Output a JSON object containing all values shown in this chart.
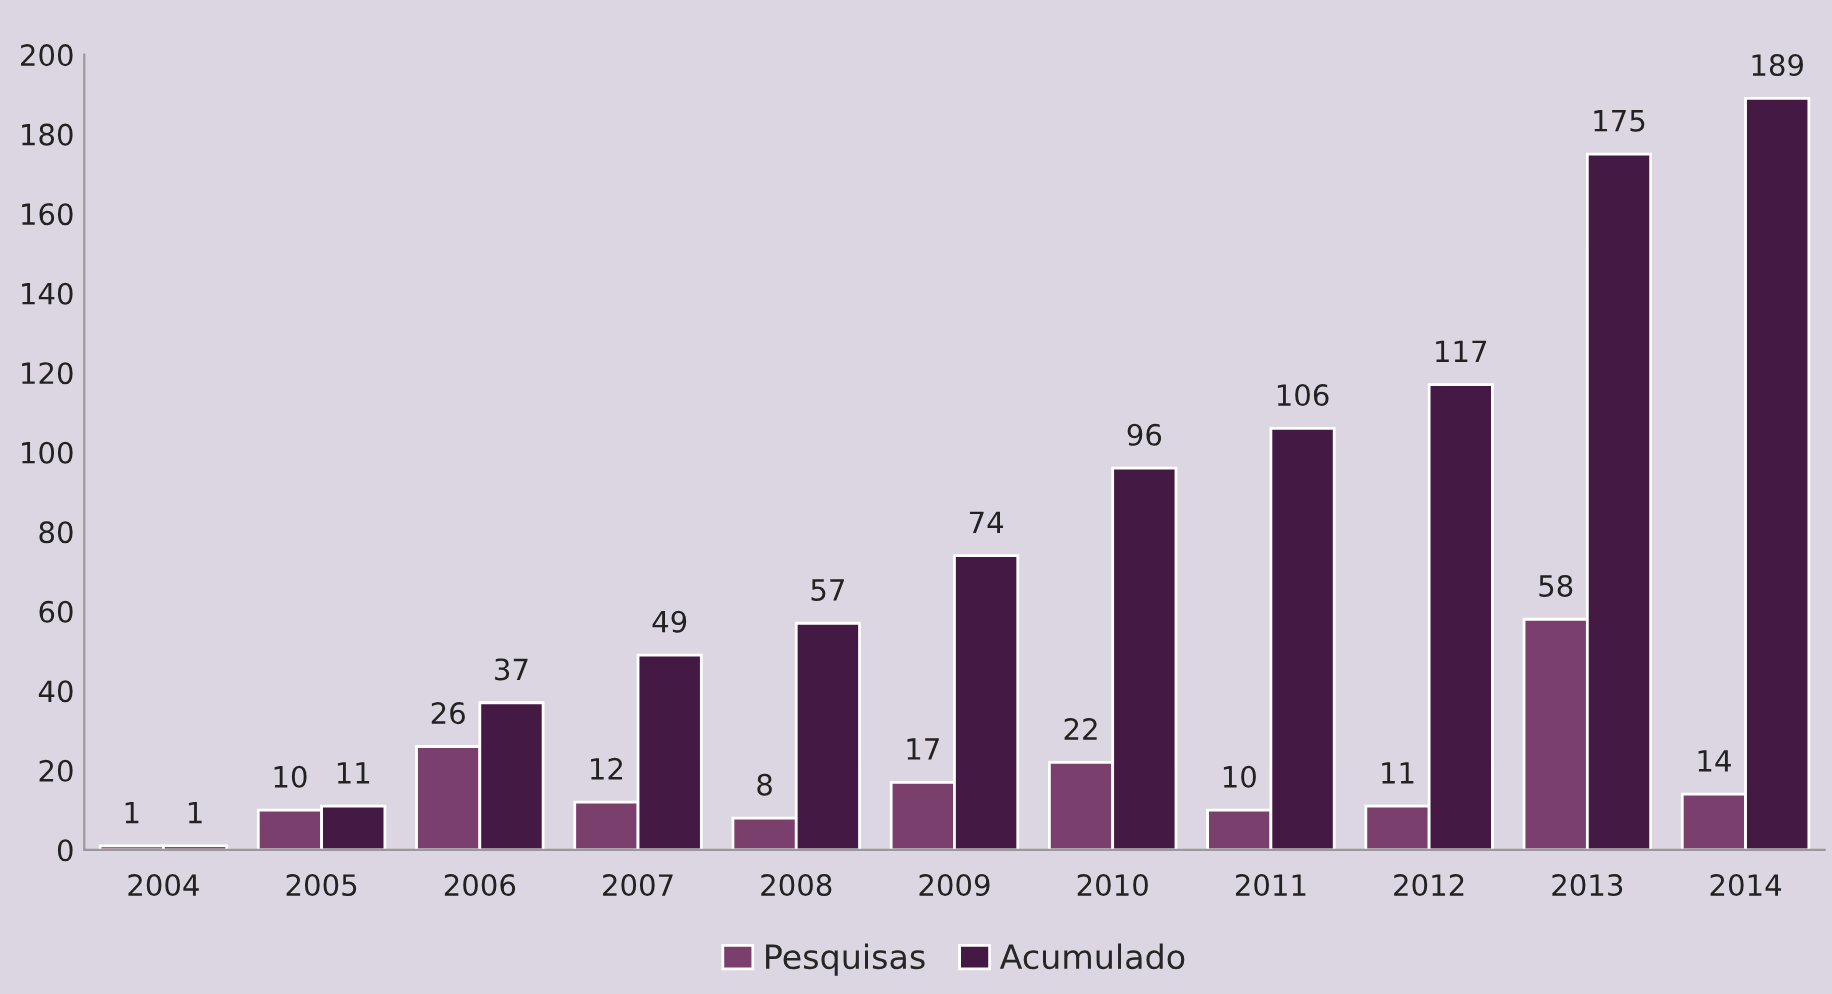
{
  "chart_data": {
    "type": "bar",
    "categories": [
      "2004",
      "2005",
      "2006",
      "2007",
      "2008",
      "2009",
      "2010",
      "2011",
      "2012",
      "2013",
      "2014"
    ],
    "series": [
      {
        "name": "Pesquisas",
        "color": "#7b3f6e",
        "values": [
          1,
          10,
          26,
          12,
          8,
          17,
          22,
          10,
          11,
          58,
          14
        ]
      },
      {
        "name": "Acumulado",
        "color": "#441a45",
        "values": [
          1,
          11,
          37,
          49,
          57,
          74,
          96,
          106,
          117,
          175,
          189
        ]
      }
    ],
    "ylim": [
      0,
      200
    ],
    "yticks": [
      0,
      20,
      40,
      60,
      80,
      100,
      120,
      140,
      160,
      180,
      200
    ],
    "grid": false,
    "legend": "bottom",
    "data_labels": true
  }
}
